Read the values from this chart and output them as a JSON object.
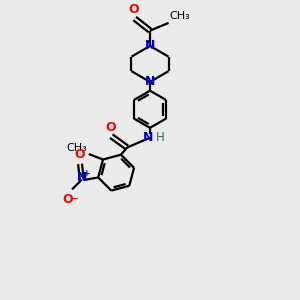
{
  "background_color": "#ebebeb",
  "bond_color": "#000000",
  "N_color": "#0000cc",
  "O_color": "#ff0000",
  "H_color": "#336666",
  "line_width": 1.6,
  "font_size": 8.5,
  "fig_w": 3.0,
  "fig_h": 3.0,
  "dpi": 100,
  "xlim": [
    0,
    10
  ],
  "ylim": [
    0,
    13
  ]
}
